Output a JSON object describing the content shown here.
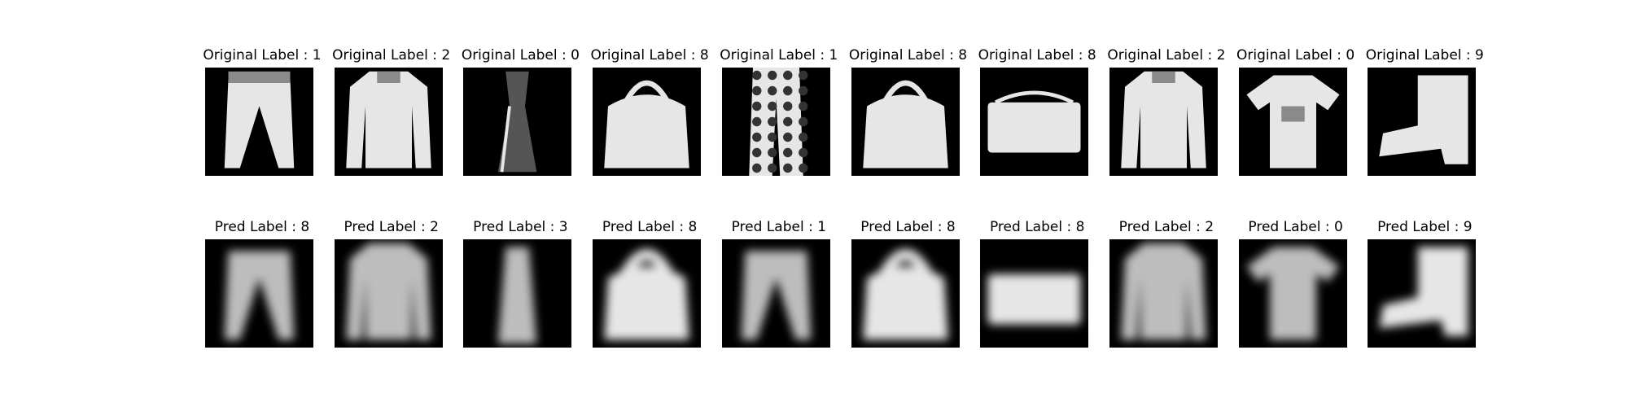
{
  "figure": {
    "rows": [
      {
        "row_name": "original",
        "titles": [
          "Original Label : 1",
          "Original Label : 2",
          "Original Label : 0",
          "Original Label : 8",
          "Original Label : 1",
          "Original Label : 8",
          "Original Label : 8",
          "Original Label : 2",
          "Original Label : 0",
          "Original Label : 9"
        ],
        "items": [
          {
            "icon": "trousers",
            "style": "sharp"
          },
          {
            "icon": "pullover",
            "style": "sharp"
          },
          {
            "icon": "dress",
            "style": "sharp"
          },
          {
            "icon": "bag",
            "style": "sharp"
          },
          {
            "icon": "trousers-patterned",
            "style": "sharp"
          },
          {
            "icon": "bag",
            "style": "sharp"
          },
          {
            "icon": "bag-flat",
            "style": "sharp"
          },
          {
            "icon": "pullover",
            "style": "sharp"
          },
          {
            "icon": "tshirt",
            "style": "sharp"
          },
          {
            "icon": "ankle-boot",
            "style": "sharp"
          }
        ]
      },
      {
        "row_name": "pred",
        "titles": [
          "Pred Label : 8",
          "Pred Label : 2",
          "Pred Label : 3",
          "Pred Label : 8",
          "Pred Label : 1",
          "Pred Label : 8",
          "Pred Label : 8",
          "Pred Label : 2",
          "Pred Label : 0",
          "Pred Label : 9"
        ],
        "items": [
          {
            "icon": "trousers",
            "style": "blurry"
          },
          {
            "icon": "pullover",
            "style": "blurry"
          },
          {
            "icon": "dress",
            "style": "blurry"
          },
          {
            "icon": "bag",
            "style": "blurry"
          },
          {
            "icon": "trousers",
            "style": "blurry"
          },
          {
            "icon": "bag",
            "style": "blurry"
          },
          {
            "icon": "bag-flat",
            "style": "blurry"
          },
          {
            "icon": "pullover",
            "style": "blurry"
          },
          {
            "icon": "tshirt",
            "style": "blurry"
          },
          {
            "icon": "ankle-boot",
            "style": "blurry"
          }
        ]
      }
    ],
    "colors": {
      "background": "#ffffff",
      "image_bg": "#000000",
      "garment_light": "#e6e6e6",
      "garment_mid": "#bdbdbd",
      "garment_dark": "#8a8a8a"
    }
  }
}
